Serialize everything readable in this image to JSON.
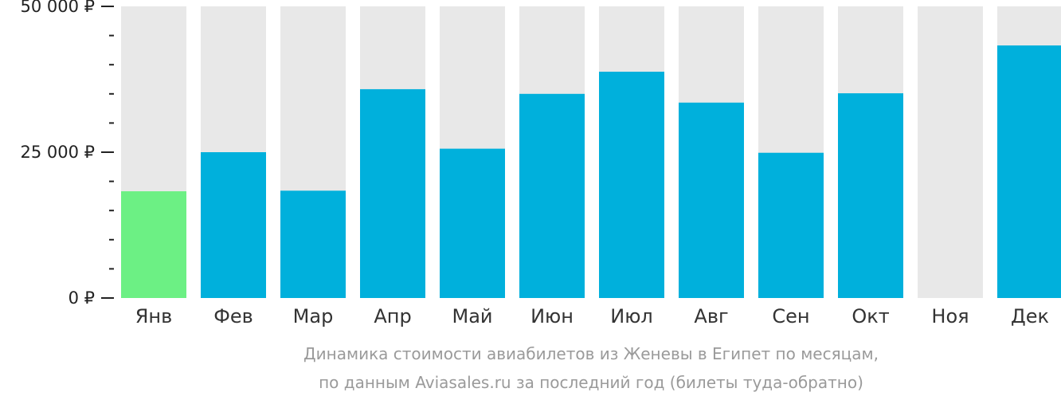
{
  "chart_data": {
    "type": "bar",
    "title": "",
    "xlabel": "",
    "ylabel": "",
    "categories": [
      "Янв",
      "Фев",
      "Мар",
      "Апр",
      "Май",
      "Июн",
      "Июл",
      "Авг",
      "Сен",
      "Окт",
      "Ноя",
      "Дек"
    ],
    "values": [
      18300,
      25000,
      18400,
      35800,
      25600,
      35000,
      38800,
      33500,
      24900,
      35100,
      null,
      43300
    ],
    "ylim": [
      0,
      50000
    ],
    "yticks": [
      {
        "value": 0,
        "label": "0 ₽"
      },
      {
        "value": 25000,
        "label": "25 000 ₽"
      },
      {
        "value": 50000,
        "label": "50 000 ₽"
      }
    ],
    "minor_tick_step": 5000,
    "grid": false,
    "highlight_index": 0,
    "colors": {
      "bar": "#00b0dc",
      "highlight": "#6cf084",
      "background_column": "#e8e8e8",
      "axis": "#222222"
    },
    "caption": [
      "Динамика стоимости авиабилетов из Женевы в Египет по месяцам,",
      "по данным Aviasales.ru за последний год (билеты туда-обратно)"
    ]
  }
}
